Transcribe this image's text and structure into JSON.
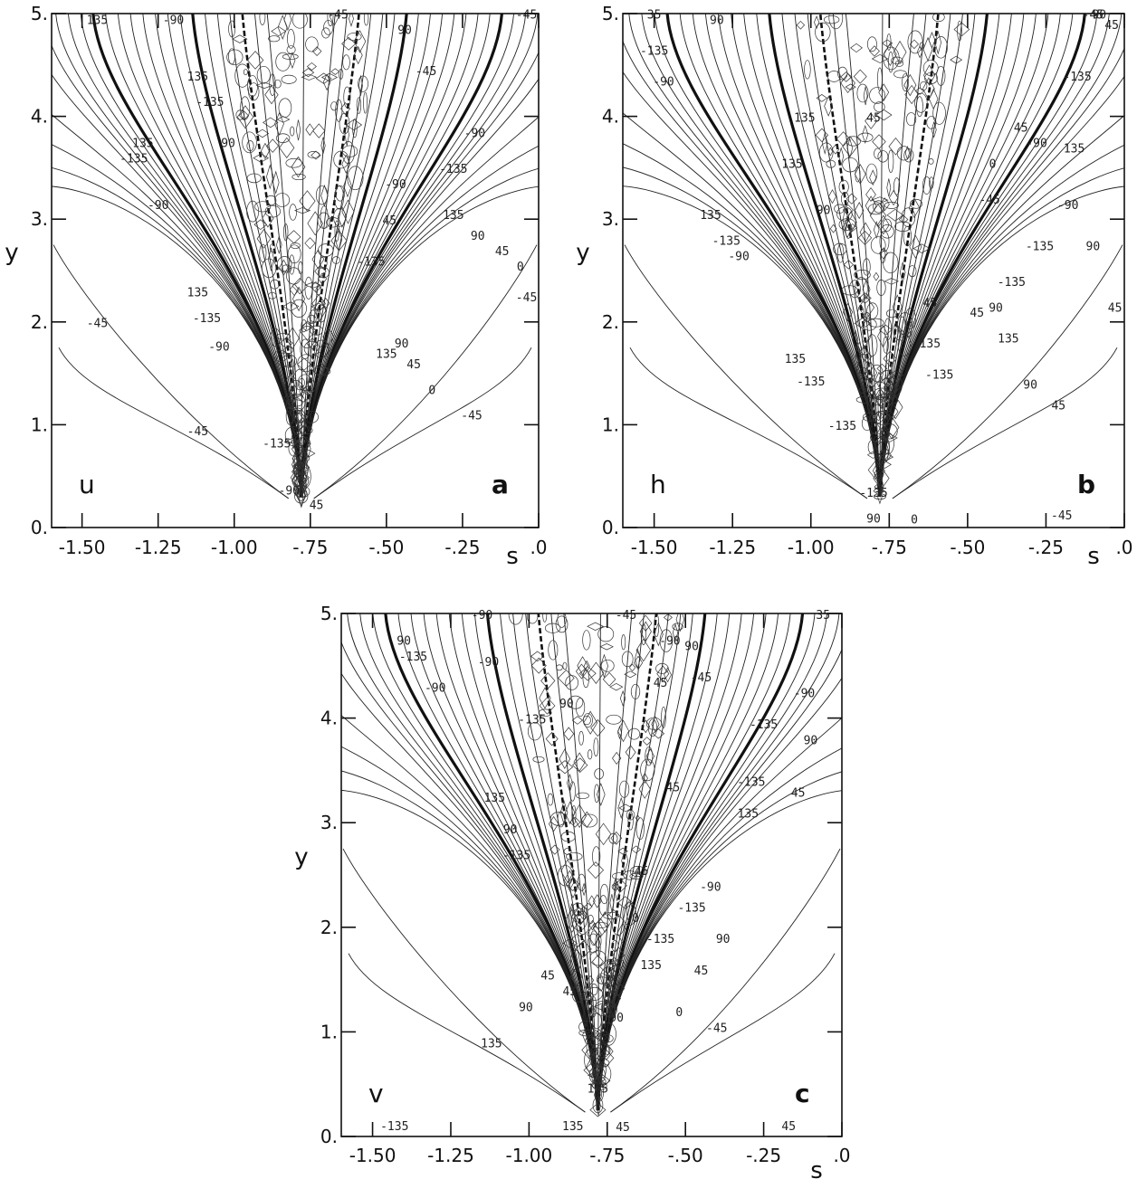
{
  "chart_data": [
    {
      "type": "contour",
      "panel_variable": "u",
      "panel_letter": "a",
      "xlabel": "s",
      "ylabel": "y",
      "xlim": [
        -1.6,
        0.0
      ],
      "ylim": [
        0.0,
        5.0
      ],
      "xticks": [
        "-1.50",
        "-1.25",
        "-1.00",
        "-.75",
        "-.50",
        "-.25",
        ".0"
      ],
      "xtick_values": [
        -1.5,
        -1.25,
        -1.0,
        -0.75,
        -0.5,
        -0.25,
        0.0
      ],
      "yticks": [
        "0.",
        "1.",
        "2.",
        "3.",
        "4.",
        "5."
      ],
      "ytick_values": [
        0,
        1,
        2,
        3,
        4,
        5
      ],
      "apex": {
        "s": -0.78,
        "y": 0.3
      },
      "contour_levels": [
        -135,
        -90,
        -45,
        0,
        45,
        90,
        135
      ],
      "contour_labels": [
        {
          "text": "-45",
          "s": -1.45,
          "y": 1.95
        },
        {
          "text": "-45",
          "s": -1.12,
          "y": 0.9
        },
        {
          "text": "135",
          "s": -1.3,
          "y": 3.7
        },
        {
          "text": "-135",
          "s": -1.33,
          "y": 3.55
        },
        {
          "text": "-90",
          "s": -1.25,
          "y": 3.1
        },
        {
          "text": "135",
          "s": -1.12,
          "y": 2.25
        },
        {
          "text": "-135",
          "s": -1.09,
          "y": 2.0
        },
        {
          "text": "-90",
          "s": -1.05,
          "y": 1.72
        },
        {
          "text": "135",
          "s": -1.12,
          "y": 4.35
        },
        {
          "text": "-135",
          "s": -1.08,
          "y": 4.1
        },
        {
          "text": "90",
          "s": -1.02,
          "y": 3.7
        },
        {
          "text": "-90",
          "s": -1.2,
          "y": 4.9
        },
        {
          "text": "-135",
          "s": -0.86,
          "y": 0.78
        },
        {
          "text": "-90",
          "s": -0.82,
          "y": 0.32
        },
        {
          "text": "45",
          "s": -0.73,
          "y": 0.18
        },
        {
          "text": "-45",
          "s": -0.66,
          "y": 4.95
        },
        {
          "text": "-135",
          "s": -0.55,
          "y": 2.55
        },
        {
          "text": "135",
          "s": -0.5,
          "y": 1.65
        },
        {
          "text": "90",
          "s": -0.45,
          "y": 1.75
        },
        {
          "text": "45",
          "s": -0.41,
          "y": 1.55
        },
        {
          "text": "0",
          "s": -0.35,
          "y": 1.3
        },
        {
          "text": "-45",
          "s": -0.22,
          "y": 1.05
        },
        {
          "text": "45",
          "s": -0.49,
          "y": 2.95
        },
        {
          "text": "-90",
          "s": -0.47,
          "y": 3.3
        },
        {
          "text": "135",
          "s": -0.28,
          "y": 3.0
        },
        {
          "text": "90",
          "s": -0.2,
          "y": 2.8
        },
        {
          "text": "45",
          "s": -0.12,
          "y": 2.65
        },
        {
          "text": "0",
          "s": -0.06,
          "y": 2.5
        },
        {
          "text": "-45",
          "s": -0.04,
          "y": 2.2
        },
        {
          "text": "-135",
          "s": -0.28,
          "y": 3.45
        },
        {
          "text": "-90",
          "s": -0.21,
          "y": 3.8
        },
        {
          "text": "-45",
          "s": -0.37,
          "y": 4.4
        },
        {
          "text": "90",
          "s": -0.44,
          "y": 4.8
        },
        {
          "text": "-45",
          "s": -0.04,
          "y": 4.95
        },
        {
          "text": "135",
          "s": -1.45,
          "y": 4.9
        }
      ]
    },
    {
      "type": "contour",
      "panel_variable": "h",
      "panel_letter": "b",
      "xlabel": "s",
      "ylabel": "y",
      "xlim": [
        -1.6,
        0.0
      ],
      "ylim": [
        0.0,
        5.0
      ],
      "xticks": [
        "-1.50",
        "-1.25",
        "-1.00",
        "-.75",
        "-.50",
        "-.25",
        ".0"
      ],
      "xtick_values": [
        -1.5,
        -1.25,
        -1.0,
        -0.75,
        -0.5,
        -0.25,
        0.0
      ],
      "yticks": [
        "0.",
        "1.",
        "2.",
        "3.",
        "4.",
        "5."
      ],
      "ytick_values": [
        0,
        1,
        2,
        3,
        4,
        5
      ],
      "apex": {
        "s": -0.78,
        "y": 0.3
      },
      "contour_levels": [
        -135,
        -90,
        -45,
        0,
        45,
        90,
        135
      ],
      "contour_labels": [
        {
          "text": "135",
          "s": -1.32,
          "y": 3.0
        },
        {
          "text": "-135",
          "s": -1.27,
          "y": 2.75
        },
        {
          "text": "-90",
          "s": -1.23,
          "y": 2.6
        },
        {
          "text": "135",
          "s": -1.05,
          "y": 1.6
        },
        {
          "text": "-135",
          "s": -1.0,
          "y": 1.38
        },
        {
          "text": "-135",
          "s": -0.9,
          "y": 0.95
        },
        {
          "text": "-135",
          "s": -0.8,
          "y": 0.3
        },
        {
          "text": "90",
          "s": -0.8,
          "y": 0.05
        },
        {
          "text": "0",
          "s": -0.67,
          "y": 0.04
        },
        {
          "text": "135",
          "s": -1.06,
          "y": 3.5
        },
        {
          "text": "90",
          "s": -0.96,
          "y": 3.05
        },
        {
          "text": "35",
          "s": -1.5,
          "y": 4.95
        },
        {
          "text": "-135",
          "s": -1.5,
          "y": 4.6
        },
        {
          "text": "-90",
          "s": -1.47,
          "y": 4.3
        },
        {
          "text": "90",
          "s": -1.3,
          "y": 4.9
        },
        {
          "text": "135",
          "s": -1.02,
          "y": 3.95
        },
        {
          "text": "45",
          "s": -0.8,
          "y": 3.95
        },
        {
          "text": "45",
          "s": -0.62,
          "y": 2.15
        },
        {
          "text": "135",
          "s": -0.62,
          "y": 1.75
        },
        {
          "text": "-135",
          "s": -0.59,
          "y": 1.45
        },
        {
          "text": "45",
          "s": -0.47,
          "y": 2.05
        },
        {
          "text": "90",
          "s": -0.41,
          "y": 2.1
        },
        {
          "text": "-135",
          "s": -0.36,
          "y": 2.35
        },
        {
          "text": "135",
          "s": -0.37,
          "y": 1.8
        },
        {
          "text": "90",
          "s": -0.3,
          "y": 1.35
        },
        {
          "text": "45",
          "s": -0.21,
          "y": 1.15
        },
        {
          "text": "-135",
          "s": -0.27,
          "y": 2.7
        },
        {
          "text": "-90",
          "s": -0.18,
          "y": 3.1
        },
        {
          "text": "90",
          "s": -0.1,
          "y": 2.7
        },
        {
          "text": "45",
          "s": -0.03,
          "y": 2.1
        },
        {
          "text": "45",
          "s": -0.33,
          "y": 3.85
        },
        {
          "text": "-90",
          "s": -0.28,
          "y": 3.7
        },
        {
          "text": "135",
          "s": -0.16,
          "y": 3.65
        },
        {
          "text": "0",
          "s": -0.42,
          "y": 3.5
        },
        {
          "text": "-45",
          "s": -0.43,
          "y": 3.15
        },
        {
          "text": "-135",
          "s": -0.15,
          "y": 4.35
        },
        {
          "text": "-45",
          "s": -0.1,
          "y": 4.95
        },
        {
          "text": "45",
          "s": -0.04,
          "y": 4.85
        },
        {
          "text": "90",
          "s": -0.08,
          "y": 4.95
        },
        {
          "text": "-45",
          "s": -0.2,
          "y": 0.08
        }
      ]
    },
    {
      "type": "contour",
      "panel_variable": "v",
      "panel_letter": "c",
      "xlabel": "s",
      "ylabel": "y",
      "xlim": [
        -1.6,
        0.0
      ],
      "ylim": [
        0.0,
        5.0
      ],
      "xticks": [
        "-1.50",
        "-1.25",
        "-1.00",
        "-.75",
        "-.50",
        "-.25",
        ".0"
      ],
      "xtick_values": [
        -1.5,
        -1.25,
        -1.0,
        -0.75,
        -0.5,
        -0.25,
        0.0
      ],
      "yticks": [
        "0.",
        "1.",
        "2.",
        "3.",
        "4.",
        "5."
      ],
      "ytick_values": [
        0,
        1,
        2,
        3,
        4,
        5
      ],
      "apex": {
        "s": -0.78,
        "y": 0.25
      },
      "contour_levels": [
        -135,
        -90,
        -45,
        0,
        45,
        90,
        135
      ],
      "contour_labels": [
        {
          "text": "135",
          "s": -1.12,
          "y": 0.85
        },
        {
          "text": "90",
          "s": -1.01,
          "y": 1.2
        },
        {
          "text": "45",
          "s": -0.94,
          "y": 1.5
        },
        {
          "text": "45",
          "s": -0.87,
          "y": 1.35
        },
        {
          "text": "90",
          "s": -1.4,
          "y": 4.7
        },
        {
          "text": "-135",
          "s": -1.37,
          "y": 4.55
        },
        {
          "text": "-90",
          "s": -1.3,
          "y": 4.25
        },
        {
          "text": "-90",
          "s": -1.13,
          "y": 4.5
        },
        {
          "text": "135",
          "s": -1.11,
          "y": 3.2
        },
        {
          "text": "90",
          "s": -1.06,
          "y": 2.9
        },
        {
          "text": "-135",
          "s": -1.04,
          "y": 2.65
        },
        {
          "text": "-135",
          "s": -0.99,
          "y": 3.95
        },
        {
          "text": "90",
          "s": -0.88,
          "y": 4.1
        },
        {
          "text": "135",
          "s": -0.78,
          "y": 0.42
        },
        {
          "text": "-135",
          "s": -1.43,
          "y": 0.06
        },
        {
          "text": "135",
          "s": -0.86,
          "y": 0.06
        },
        {
          "text": "45",
          "s": -0.7,
          "y": 0.05
        },
        {
          "text": "-90",
          "s": -1.15,
          "y": 4.95
        },
        {
          "text": "-45",
          "s": -0.69,
          "y": 4.95
        },
        {
          "text": "-90",
          "s": -0.55,
          "y": 4.7
        },
        {
          "text": "90",
          "s": -0.48,
          "y": 4.65
        },
        {
          "text": "-45",
          "s": -0.45,
          "y": 4.35
        },
        {
          "text": "45",
          "s": -0.58,
          "y": 4.3
        },
        {
          "text": "45",
          "s": -0.54,
          "y": 3.3
        },
        {
          "text": "-135",
          "s": -0.58,
          "y": 1.85
        },
        {
          "text": "135",
          "s": -0.61,
          "y": 1.6
        },
        {
          "text": "45",
          "s": -0.64,
          "y": 2.5
        },
        {
          "text": "0",
          "s": -0.66,
          "y": 2.05
        },
        {
          "text": "90",
          "s": -0.72,
          "y": 1.1
        },
        {
          "text": "-135",
          "s": -0.48,
          "y": 2.15
        },
        {
          "text": "-90",
          "s": -0.42,
          "y": 2.35
        },
        {
          "text": "90",
          "s": -0.38,
          "y": 1.85
        },
        {
          "text": "45",
          "s": -0.45,
          "y": 1.55
        },
        {
          "text": "0",
          "s": -0.52,
          "y": 1.15
        },
        {
          "text": "-45",
          "s": -0.4,
          "y": 1.0
        },
        {
          "text": "135",
          "s": -0.3,
          "y": 3.05
        },
        {
          "text": "-135",
          "s": -0.29,
          "y": 3.35
        },
        {
          "text": "45",
          "s": -0.14,
          "y": 3.25
        },
        {
          "text": "-90",
          "s": -0.12,
          "y": 4.2
        },
        {
          "text": "-135",
          "s": -0.25,
          "y": 3.9
        },
        {
          "text": "90",
          "s": -0.1,
          "y": 3.75
        },
        {
          "text": "45",
          "s": -0.17,
          "y": 0.06
        },
        {
          "text": "35",
          "s": -0.06,
          "y": 4.95
        }
      ]
    }
  ]
}
